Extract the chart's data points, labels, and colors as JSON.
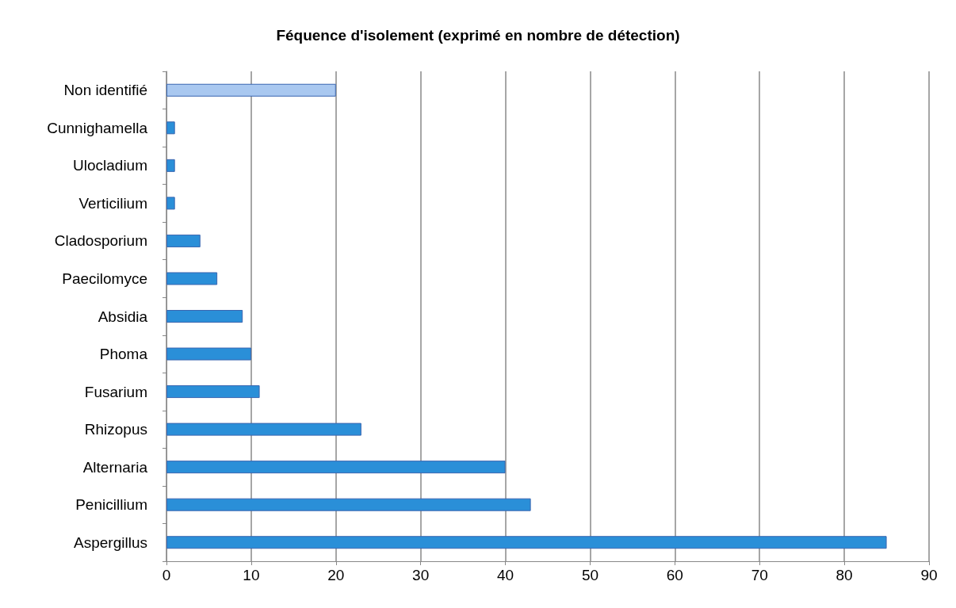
{
  "chart_data": {
    "type": "bar",
    "orientation": "horizontal",
    "title": "Féquence d'isolement (exprimé en nombre de détection)",
    "categories": [
      "Non identifié",
      "Cunnighamella",
      "Ulocladium",
      "Verticilium",
      "Cladosporium",
      "Paecilomyce",
      "Absidia",
      "Phoma",
      "Fusarium",
      "Rhizopus",
      "Alternaria",
      "Penicillium",
      "Aspergillus"
    ],
    "values": [
      20,
      1,
      1,
      1,
      4,
      6,
      9,
      10,
      11,
      23,
      40,
      43,
      85
    ],
    "colors": [
      "#a9c8f0",
      "#2a8fd8",
      "#2a8fd8",
      "#2a8fd8",
      "#2a8fd8",
      "#2a8fd8",
      "#2a8fd8",
      "#2a8fd8",
      "#2a8fd8",
      "#2a8fd8",
      "#2a8fd8",
      "#2a8fd8",
      "#2a8fd8"
    ],
    "xlim": [
      0,
      90
    ],
    "xticks": [
      0,
      10,
      20,
      30,
      40,
      50,
      60,
      70,
      80,
      90
    ],
    "grid": "x"
  }
}
